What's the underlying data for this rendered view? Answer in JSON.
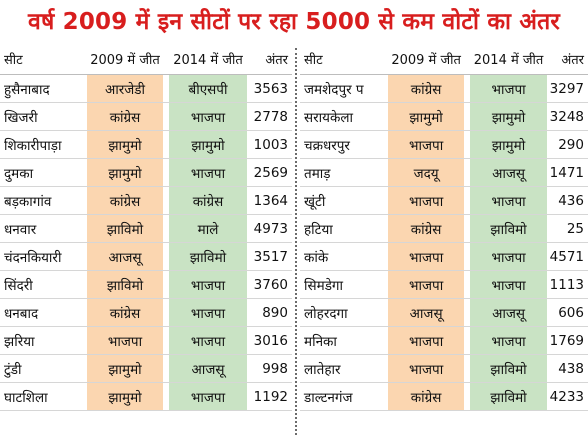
{
  "title": "वर्ष 2009 में इन सीटों पर रहा 5000 से कम वोटों का अंतर",
  "colors": {
    "title": "#d81e1e",
    "col_2009": "#fbd6b0",
    "col_2014": "#c9e3c4"
  },
  "headers": {
    "seat": "सीट",
    "won_2009": "2009 में जीत",
    "won_2014": "2014 में जीत",
    "margin": "अंतर"
  },
  "left_rows": [
    {
      "seat": "हुसैनाबाद",
      "won_2009": "आरजेडी",
      "won_2014": "बीएसपी",
      "margin": "3563"
    },
    {
      "seat": "खिजरी",
      "won_2009": "कांग्रेस",
      "won_2014": "भाजपा",
      "margin": "2778"
    },
    {
      "seat": "शिकारीपाड़ा",
      "won_2009": "झामुमो",
      "won_2014": "झामुमो",
      "margin": "1003"
    },
    {
      "seat": "दुमका",
      "won_2009": "झामुमो",
      "won_2014": "भाजपा",
      "margin": "2569"
    },
    {
      "seat": "बड़कागांव",
      "won_2009": "कांग्रेस",
      "won_2014": "कांग्रेस",
      "margin": "1364"
    },
    {
      "seat": "धनवार",
      "won_2009": "झाविमो",
      "won_2014": "माले",
      "margin": "4973"
    },
    {
      "seat": "चंदनकियारी",
      "won_2009": "आजसू",
      "won_2014": "झाविमो",
      "margin": "3517"
    },
    {
      "seat": "सिंदरी",
      "won_2009": "झाविमो",
      "won_2014": "भाजपा",
      "margin": "3760"
    },
    {
      "seat": "धनबाद",
      "won_2009": "कांग्रेस",
      "won_2014": "भाजपा",
      "margin": "890"
    },
    {
      "seat": "झरिया",
      "won_2009": "भाजपा",
      "won_2014": "भाजपा",
      "margin": "3016"
    },
    {
      "seat": "टुंडी",
      "won_2009": "झामुमो",
      "won_2014": "आजसू",
      "margin": "998"
    },
    {
      "seat": "घाटशिला",
      "won_2009": "झामुमो",
      "won_2014": "भाजपा",
      "margin": "1192"
    }
  ],
  "right_rows": [
    {
      "seat": "जमशेदपुर प",
      "won_2009": "कांग्रेस",
      "won_2014": "भाजपा",
      "margin": "3297"
    },
    {
      "seat": "सरायकेला",
      "won_2009": "झामुमो",
      "won_2014": "झामुमो",
      "margin": "3248"
    },
    {
      "seat": "चक्रधरपुर",
      "won_2009": "भाजपा",
      "won_2014": "झामुमो",
      "margin": "290"
    },
    {
      "seat": "तमाड़",
      "won_2009": "जदयू",
      "won_2014": "आजसू",
      "margin": "1471"
    },
    {
      "seat": "खूंटी",
      "won_2009": "भाजपा",
      "won_2014": "भाजपा",
      "margin": "436"
    },
    {
      "seat": "हटिया",
      "won_2009": "कांग्रेस",
      "won_2014": "झाविमो",
      "margin": "25"
    },
    {
      "seat": "कांके",
      "won_2009": "भाजपा",
      "won_2014": "भाजपा",
      "margin": "4571"
    },
    {
      "seat": "सिमडेगा",
      "won_2009": "भाजपा",
      "won_2014": "भाजपा",
      "margin": "1113"
    },
    {
      "seat": "लोहरदगा",
      "won_2009": "आजसू",
      "won_2014": "आजसू",
      "margin": "606"
    },
    {
      "seat": "मनिका",
      "won_2009": "भाजपा",
      "won_2014": "भाजपा",
      "margin": "1769"
    },
    {
      "seat": "लातेहार",
      "won_2009": "भाजपा",
      "won_2014": "झाविमो",
      "margin": "438"
    },
    {
      "seat": "डाल्टनगंज",
      "won_2009": "कांग्रेस",
      "won_2014": "झाविमो",
      "margin": "4233"
    }
  ]
}
